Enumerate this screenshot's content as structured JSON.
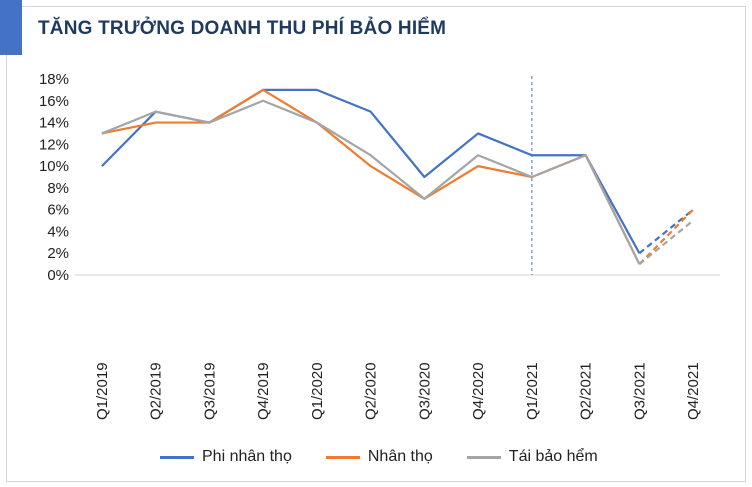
{
  "title": "TĂNG TRƯỞNG DOANH THU PHÍ BẢO HIỂM",
  "colors": {
    "accent": "#4472c4",
    "phi_nhan_tho": "#4472c4",
    "nhan_tho": "#ed7d31",
    "tai_bao_hiem": "#a5a5a5"
  },
  "chart_data": {
    "type": "line",
    "title": "TĂNG TRƯỞNG DOANH THU PHÍ BẢO HIỂM",
    "xlabel": "",
    "ylabel": "",
    "categories": [
      "Q1/2019",
      "Q2/2019",
      "Q3/2019",
      "Q4/2019",
      "Q1/2020",
      "Q2/2020",
      "Q3/2020",
      "Q4/2020",
      "Q1/2021",
      "Q2/2021",
      "Q3/2021",
      "Q4/2021"
    ],
    "ylim": [
      0,
      18
    ],
    "yticks": [
      "0%",
      "2%",
      "4%",
      "6%",
      "8%",
      "10%",
      "12%",
      "14%",
      "16%",
      "18%"
    ],
    "grid": false,
    "legend_position": "bottom",
    "forecast_from_index": 10,
    "divider_after_index": 8,
    "series": [
      {
        "name": "Phi nhân thọ",
        "color": "#4472c4",
        "values": [
          10,
          15,
          14,
          17,
          17,
          15,
          9,
          13,
          11,
          11,
          2,
          6
        ]
      },
      {
        "name": "Nhân thọ",
        "color": "#ed7d31",
        "values": [
          13,
          14,
          14,
          17,
          14,
          10,
          7,
          10,
          9,
          11,
          1,
          6
        ]
      },
      {
        "name": "Tái bảo hểm",
        "color": "#a5a5a5",
        "values": [
          13,
          15,
          14,
          16,
          14,
          11,
          7,
          11,
          9,
          11,
          1,
          5
        ]
      }
    ]
  }
}
